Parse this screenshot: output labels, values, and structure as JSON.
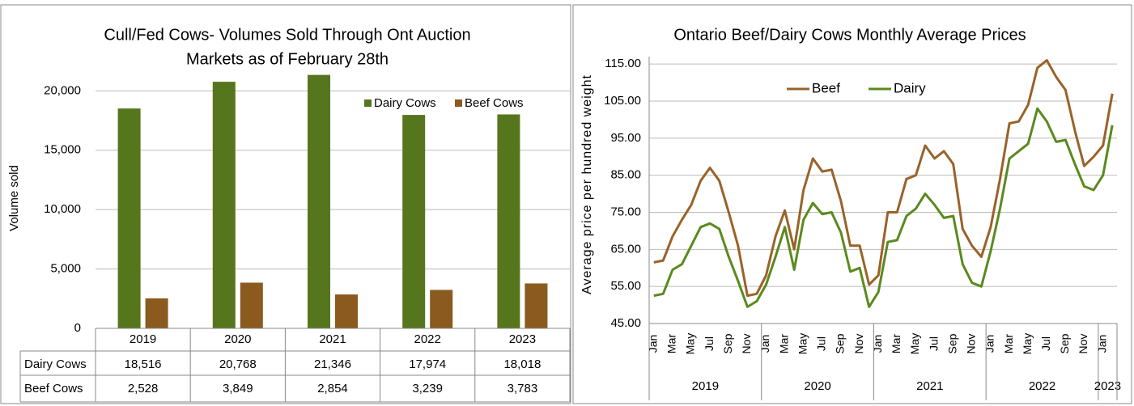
{
  "chart_data": [
    {
      "type": "bar",
      "title": [
        "Cull/Fed Cows- Volumes Sold Through Ont Auction",
        "Markets as of February 28th"
      ],
      "y_label": "Volume sold",
      "categories": [
        "2019",
        "2020",
        "2021",
        "2022",
        "2023"
      ],
      "series": [
        {
          "name": "Dairy Cows",
          "color": "#56761e",
          "values": [
            18516,
            20768,
            21346,
            17974,
            18018
          ],
          "value_labels": [
            "18,516",
            "20,768",
            "21,346",
            "17,974",
            "18,018"
          ]
        },
        {
          "name": "Beef Cows",
          "color": "#8b5a1e",
          "values": [
            2528,
            3849,
            2854,
            3239,
            3783
          ],
          "value_labels": [
            "2,528",
            "3,849",
            "2,854",
            "3,239",
            "3,783"
          ]
        }
      ],
      "ylim": [
        0,
        22000
      ],
      "yticks": [
        0,
        {
          "value": 5000,
          "label": "5,000"
        },
        {
          "value": 10000,
          "label": "10,000"
        },
        {
          "value": 15000,
          "label": "15,000"
        },
        {
          "value": 20000,
          "label": "20,000"
        }
      ],
      "grid": true,
      "legend": "upper right",
      "data_table": true
    },
    {
      "type": "line",
      "title": "Ontario Beef/Dairy Cows Monthly Average Prices",
      "y_label": "Average price per hundred weight",
      "categories": [
        "Jan",
        null,
        "Mar",
        null,
        "May",
        null,
        "Jul",
        null,
        "Sep",
        null,
        "Nov",
        null,
        "Jan",
        null,
        "Mar",
        null,
        "May",
        null,
        "Jul",
        null,
        "Sep",
        null,
        "Nov",
        null,
        "Jan",
        null,
        "Mar",
        null,
        "May",
        null,
        "Jul",
        null,
        "Sep",
        null,
        "Nov",
        null,
        "Jan",
        null,
        "Mar",
        null,
        "May",
        null,
        "Jul",
        null,
        "Sep",
        null,
        "Nov",
        null,
        "Jan",
        null
      ],
      "years": [
        "2019",
        "2020",
        "2021",
        "2022",
        "2023"
      ],
      "series": [
        {
          "name": "Beef",
          "color": "#9a6228",
          "values": [
            61.5,
            62,
            68.5,
            73,
            77,
            83.5,
            87,
            83.5,
            75,
            66,
            52.5,
            53,
            58,
            68.5,
            75.5,
            65,
            81,
            89.5,
            86,
            86.5,
            78,
            66,
            66,
            55.5,
            58,
            75,
            75,
            84,
            85,
            93,
            89.5,
            91.5,
            88,
            70.5,
            66,
            63,
            71,
            84,
            99,
            99.5,
            104,
            114,
            116,
            111.5,
            108,
            97,
            87.5,
            90,
            93,
            107
          ]
        },
        {
          "name": "Dairy",
          "color": "#5a8a1e",
          "values": [
            52.5,
            53,
            59.5,
            61,
            66,
            71,
            72,
            70.5,
            63,
            56.5,
            49.5,
            51,
            55.5,
            63,
            71,
            59.5,
            73,
            77.5,
            74.5,
            75,
            69.5,
            59,
            60,
            49.5,
            53.5,
            67,
            67.5,
            74,
            76,
            80,
            77,
            73.5,
            74,
            61,
            56,
            55,
            64.5,
            76,
            89.5,
            91.5,
            93.5,
            103,
            99.5,
            94,
            94.5,
            88,
            82,
            81,
            85,
            98.5
          ]
        }
      ],
      "ylim": [
        45,
        117
      ],
      "yticks": [
        {
          "value": 45,
          "label": "45.00"
        },
        {
          "value": 55,
          "label": "55.00"
        },
        {
          "value": 65,
          "label": "65.00"
        },
        {
          "value": 75,
          "label": "75.00"
        },
        {
          "value": 85,
          "label": "85.00"
        },
        {
          "value": 95,
          "label": "95.00"
        },
        {
          "value": 105,
          "label": "105.00"
        },
        {
          "value": 115,
          "label": "115.00"
        }
      ],
      "grid": true,
      "legend": "upper center"
    }
  ]
}
